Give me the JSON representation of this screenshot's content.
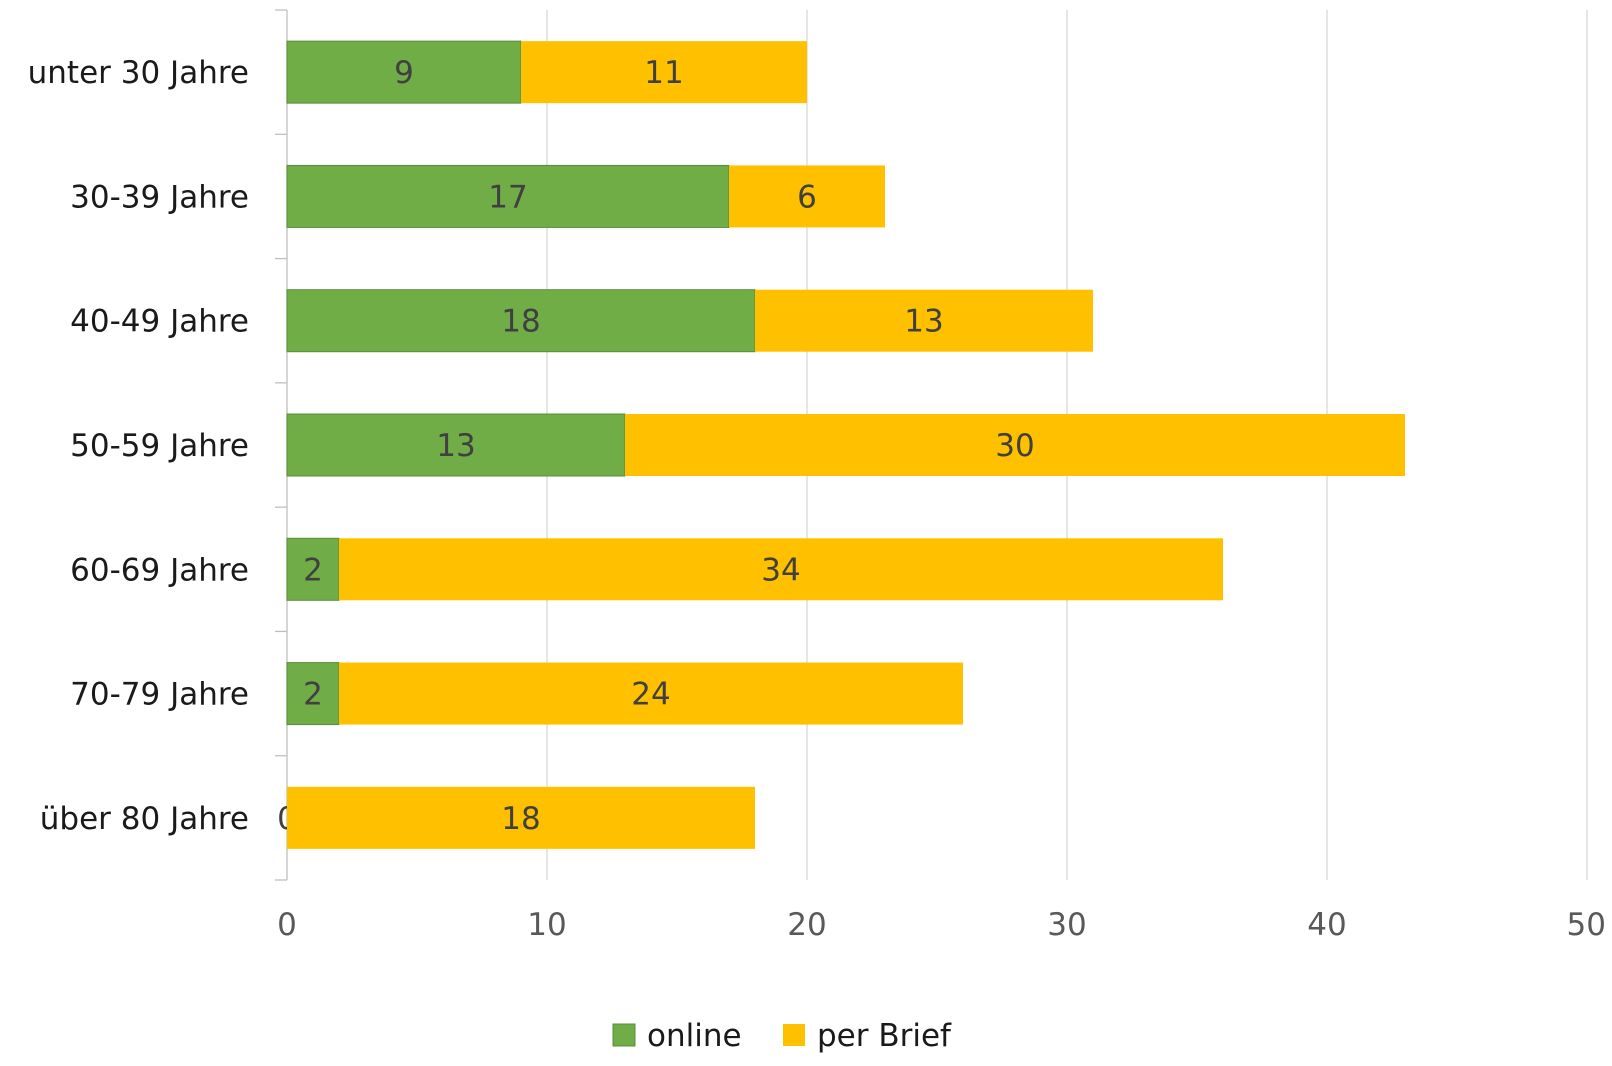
{
  "chart_data": {
    "type": "bar",
    "orientation": "horizontal",
    "stacked": true,
    "categories": [
      "unter 30 Jahre",
      "30-39 Jahre",
      "40-49 Jahre",
      "50-59 Jahre",
      "60-69 Jahre",
      "70-79 Jahre",
      "über 80 Jahre"
    ],
    "series": [
      {
        "name": "online",
        "color": "#70AD47",
        "values": [
          9,
          17,
          18,
          13,
          2,
          2,
          0
        ]
      },
      {
        "name": "per Brief",
        "color": "#FFC000",
        "values": [
          11,
          6,
          13,
          30,
          34,
          24,
          18
        ]
      }
    ],
    "xlim": [
      0,
      50
    ],
    "xticks": [
      0,
      10,
      20,
      30,
      40,
      50
    ],
    "grid": true,
    "legend_position": "bottom-center",
    "title": "",
    "xlabel": "",
    "ylabel": ""
  }
}
